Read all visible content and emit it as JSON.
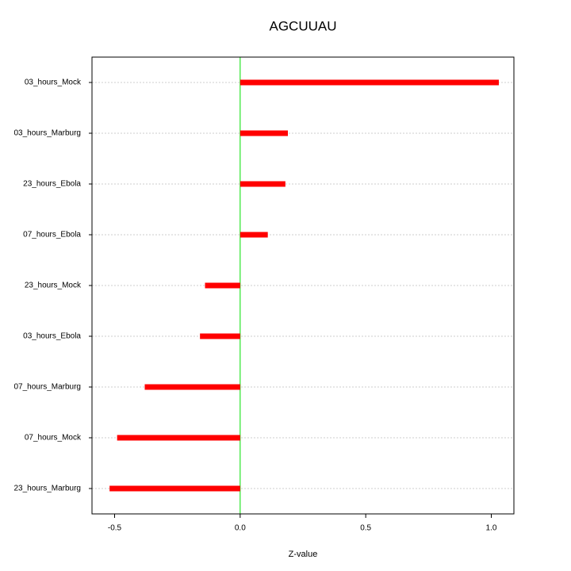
{
  "chart_data": {
    "type": "bar",
    "orientation": "horizontal",
    "title": "AGCUUAU",
    "x_label": "Z-value",
    "categories": [
      "03_hours_Mock",
      "03_hours_Marburg",
      "23_hours_Ebola",
      "07_hours_Ebola",
      "23_hours_Mock",
      "03_hours_Ebola",
      "07_hours_Marburg",
      "07_hours_Mock",
      "23_hours_Marburg"
    ],
    "values": [
      1.03,
      0.19,
      0.18,
      0.11,
      -0.14,
      -0.16,
      -0.38,
      -0.49,
      -0.52
    ],
    "color": "#ff0000",
    "reference_line_color": "#00e000",
    "xlim": [
      -0.59,
      1.09
    ],
    "xticks": [
      {
        "value": -0.5,
        "label": "-0.5"
      },
      {
        "value": 0,
        "label": "0.0"
      },
      {
        "value": 0.5,
        "label": "0.5"
      },
      {
        "value": 1,
        "label": "1.0"
      }
    ],
    "grid": true
  }
}
